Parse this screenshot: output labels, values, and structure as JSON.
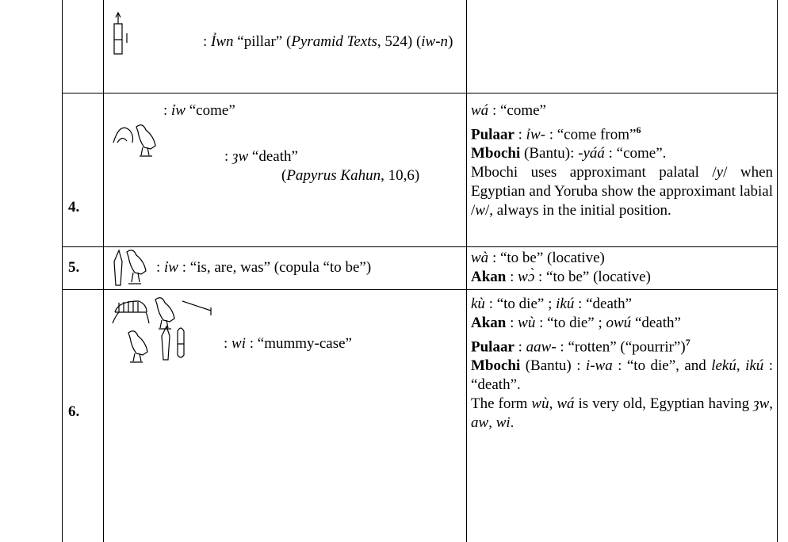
{
  "table": {
    "rows": [
      {
        "egyptian": [
          [
            [
              {
                "t": ": "
              },
              {
                "i": "Ỉwn"
              },
              {
                "t": " “pillar” ("
              },
              {
                "i": "Pyramid Texts"
              },
              {
                "t": ", 524) ("
              },
              {
                "i": "iw-n"
              },
              {
                "t": ")"
              }
            ]
          ]
        ],
        "yoruba": []
      },
      {
        "number": "4.",
        "egyptian": [
          [
            [
              {
                "t": ": "
              },
              {
                "i": "ỉw"
              },
              {
                "t": " “come”"
              }
            ]
          ]
        ],
        "yoruba": [
          [
            {
              "i": "wá"
            },
            {
              "t": " : “come”"
            }
          ],
          [
            {
              "b": "Pulaar"
            },
            {
              "t": " : "
            },
            {
              "i": "ỉw"
            },
            {
              "t": "- : “come from”"
            },
            {
              "sup": "6"
            }
          ],
          [
            {
              "b": "Mbochi"
            },
            {
              "t": " (Bantu):  -"
            },
            {
              "i": "yáá"
            },
            {
              "t": " : “come”."
            }
          ],
          [
            {
              "t": "Mbochi uses approximant palatal /"
            },
            {
              "i": "y"
            },
            {
              "t": "/ when Egyptian and Yoruba show the approximant labial /"
            },
            {
              "i": "w"
            },
            {
              "t": "/, always in the initial position."
            }
          ]
        ]
      },
      {
        "number": "5.",
        "egyptian": [
          [
            [
              {
                "t": ": "
              },
              {
                "i": "ỉw"
              },
              {
                "t": " : “is, are, was” (copula “to be”)"
              }
            ]
          ]
        ],
        "yoruba": [
          [
            {
              "i": "wà"
            },
            {
              "t": " : “to be” (locative)"
            }
          ],
          [
            {
              "b": "Akan"
            },
            {
              "t": " : "
            },
            {
              "i": "wɔ̀"
            },
            {
              "t": " : “to be” (locative)"
            }
          ]
        ]
      },
      {
        "number": "6.",
        "egyptian": [
          [
            [
              {
                "t": ": "
              },
              {
                "i": "ȝw"
              },
              {
                "t": " “death”"
              }
            ],
            [
              {
                "t": "("
              },
              {
                "i": "Papyrus Kahun"
              },
              {
                "t": ", 10,6)"
              }
            ]
          ],
          [
            [
              {
                "t": ": "
              },
              {
                "i": "wi"
              },
              {
                "t": " : “mummy-case”"
              }
            ]
          ]
        ],
        "yoruba": [
          [
            {
              "i": "kù"
            },
            {
              "t": " : “to die” ; "
            },
            {
              "i": "ikú"
            },
            {
              "t": " : “death”"
            }
          ],
          [
            {
              "b": "Akan"
            },
            {
              "t": " : "
            },
            {
              "i": "wù"
            },
            {
              "t": " : “to die” ; "
            },
            {
              "i": "owú"
            },
            {
              "t": " “death”"
            }
          ],
          [
            {
              "b": "Pulaar"
            },
            {
              "t": " : "
            },
            {
              "i": "aaw"
            },
            {
              "t": "- : “rotten” (“pourrir”)"
            },
            {
              "sup": "7"
            }
          ],
          [
            {
              "b": "Mbochi"
            },
            {
              "t": " (Bantu) : "
            },
            {
              "i": "i-wa"
            },
            {
              "t": " : “to die”, and "
            },
            {
              "i": "lekú"
            },
            {
              "t": ", "
            },
            {
              "i": "ikú"
            },
            {
              "t": " : “death”."
            }
          ],
          [
            {
              "t": "The form "
            },
            {
              "i": "wù"
            },
            {
              "t": ", "
            },
            {
              "i": "wá"
            },
            {
              "t": " is very old, Egyptian having "
            },
            {
              "i": "ȝw"
            },
            {
              "t": ", "
            },
            {
              "i": "aw"
            },
            {
              "t": ", "
            },
            {
              "i": "wi"
            },
            {
              "t": "."
            }
          ]
        ]
      }
    ]
  }
}
